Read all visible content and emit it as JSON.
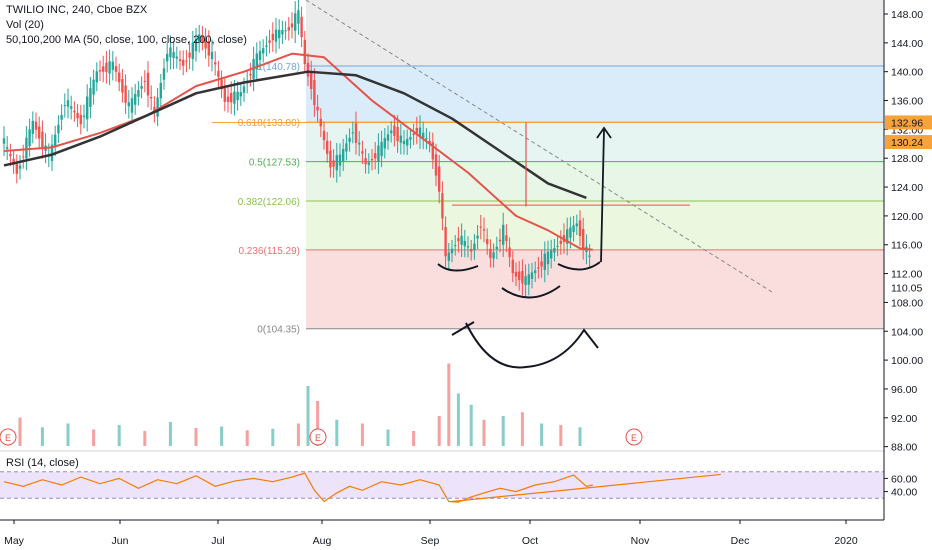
{
  "legend": {
    "title": "TWILIO INC, 240, Cboe BZX",
    "vol": "Vol (20)",
    "ma": "50,100,200 MA (50, close, 100, close, 200, close)",
    "rsi": "RSI (14, close)"
  },
  "colors": {
    "up": "#26a69a",
    "down": "#ef5350",
    "ma50": "#e5534b",
    "ma200": "#333333",
    "rsi_line": "#f57c00",
    "rsi_band": "#ede3fb",
    "price_tag": "#f7a23b"
  },
  "chart_data": [
    {
      "type": "candlestick",
      "title": "TWILIO INC, 240, Cboe BZX",
      "x_tick_labels": [
        "May",
        "Jun",
        "Jul",
        "Aug",
        "Sep",
        "Oct",
        "Nov",
        "Dec",
        "2020"
      ],
      "ylim": [
        88,
        150
      ],
      "y_ticks": [
        88,
        92,
        96,
        100,
        104,
        108,
        112,
        116,
        120,
        124,
        128,
        132,
        136,
        140,
        144,
        148
      ],
      "y_tick_labels": [
        "88.00",
        "92.00",
        "96.00",
        "100.00",
        "104.00",
        "108.00",
        "112.00",
        "116.00",
        "120.00",
        "124.00",
        "128.00",
        "132.00",
        "136.00",
        "140.00",
        "144.00",
        "148.00"
      ],
      "price_tags": [
        {
          "value": 132.96,
          "label": "132.96"
        },
        {
          "value": 130.24,
          "label": "130.24"
        },
        {
          "value": 110.05,
          "label": "110.05"
        }
      ],
      "fib_levels": [
        {
          "ratio": "1",
          "label": "1(140.78)",
          "value": 140.78,
          "color": "#6fa8dc",
          "fill": "#d6e9f8"
        },
        {
          "ratio": "0.618",
          "label": "0.618(133.00)",
          "value": 133.0,
          "color": "#f0a030",
          "fill": "#e3f4f0"
        },
        {
          "ratio": "0.5",
          "label": "0.5(127.53)",
          "value": 127.53,
          "color": "#4caf50",
          "fill": "#e6f5e6"
        },
        {
          "ratio": "0.382",
          "label": "0.382(122.06)",
          "value": 122.06,
          "color": "#8bc34a",
          "fill": "#eaf6dc"
        },
        {
          "ratio": "0.236",
          "label": "0.236(115.29)",
          "value": 115.29,
          "color": "#e57373",
          "fill": "#f9dada"
        },
        {
          "ratio": "0",
          "label": "0(104.35)",
          "value": 104.35,
          "color": "#888888",
          "fill": "#f9dada"
        }
      ],
      "price_path": [
        {
          "day": 0,
          "price": 131
        },
        {
          "day": 5,
          "price": 126
        },
        {
          "day": 10,
          "price": 133
        },
        {
          "day": 15,
          "price": 128
        },
        {
          "day": 20,
          "price": 136
        },
        {
          "day": 25,
          "price": 133
        },
        {
          "day": 30,
          "price": 140
        },
        {
          "day": 35,
          "price": 141
        },
        {
          "day": 40,
          "price": 135
        },
        {
          "day": 45,
          "price": 139
        },
        {
          "day": 48,
          "price": 134
        },
        {
          "day": 52,
          "price": 143
        },
        {
          "day": 57,
          "price": 141
        },
        {
          "day": 62,
          "price": 145
        },
        {
          "day": 66,
          "price": 142
        },
        {
          "day": 70,
          "price": 136
        },
        {
          "day": 75,
          "price": 137
        },
        {
          "day": 80,
          "price": 142
        },
        {
          "day": 85,
          "price": 145
        },
        {
          "day": 90,
          "price": 146
        },
        {
          "day": 93,
          "price": 148
        },
        {
          "day": 95,
          "price": 141
        },
        {
          "day": 97,
          "price": 138
        },
        {
          "day": 100,
          "price": 132
        },
        {
          "day": 103,
          "price": 127
        },
        {
          "day": 106,
          "price": 128
        },
        {
          "day": 110,
          "price": 132
        },
        {
          "day": 114,
          "price": 127
        },
        {
          "day": 118,
          "price": 129
        },
        {
          "day": 122,
          "price": 132
        },
        {
          "day": 126,
          "price": 130
        },
        {
          "day": 130,
          "price": 132
        },
        {
          "day": 134,
          "price": 130
        },
        {
          "day": 137,
          "price": 124
        },
        {
          "day": 139,
          "price": 114
        },
        {
          "day": 143,
          "price": 117
        },
        {
          "day": 147,
          "price": 115
        },
        {
          "day": 150,
          "price": 119
        },
        {
          "day": 153,
          "price": 114
        },
        {
          "day": 157,
          "price": 118
        },
        {
          "day": 160,
          "price": 112
        },
        {
          "day": 164,
          "price": 111
        },
        {
          "day": 168,
          "price": 113
        },
        {
          "day": 172,
          "price": 115
        },
        {
          "day": 176,
          "price": 117
        },
        {
          "day": 180,
          "price": 119
        },
        {
          "day": 182,
          "price": 116
        },
        {
          "day": 184,
          "price": 114
        }
      ],
      "ma50": [
        {
          "day": 0,
          "price": 129
        },
        {
          "day": 15,
          "price": 129.5
        },
        {
          "day": 30,
          "price": 131.5
        },
        {
          "day": 45,
          "price": 134
        },
        {
          "day": 60,
          "price": 138
        },
        {
          "day": 75,
          "price": 140
        },
        {
          "day": 90,
          "price": 142.5
        },
        {
          "day": 100,
          "price": 142
        },
        {
          "day": 115,
          "price": 136
        },
        {
          "day": 130,
          "price": 131
        },
        {
          "day": 145,
          "price": 126
        },
        {
          "day": 160,
          "price": 120
        },
        {
          "day": 170,
          "price": 118
        },
        {
          "day": 180,
          "price": 115.5
        },
        {
          "day": 184,
          "price": 115.3
        }
      ],
      "ma200": [
        {
          "day": 0,
          "price": 127
        },
        {
          "day": 15,
          "price": 128.5
        },
        {
          "day": 30,
          "price": 131
        },
        {
          "day": 45,
          "price": 134
        },
        {
          "day": 60,
          "price": 137
        },
        {
          "day": 75,
          "price": 138.5
        },
        {
          "day": 95,
          "price": 140
        },
        {
          "day": 110,
          "price": 139.5
        },
        {
          "day": 125,
          "price": 137
        },
        {
          "day": 140,
          "price": 133.5
        },
        {
          "day": 155,
          "price": 129
        },
        {
          "day": 170,
          "price": 124.5
        },
        {
          "day": 182,
          "price": 122.5
        }
      ],
      "volume": [
        {
          "day": 5,
          "value": 38,
          "up": false
        },
        {
          "day": 12,
          "value": 25,
          "up": true
        },
        {
          "day": 20,
          "value": 30,
          "up": true
        },
        {
          "day": 28,
          "value": 22,
          "up": false
        },
        {
          "day": 36,
          "value": 28,
          "up": true
        },
        {
          "day": 44,
          "value": 20,
          "up": false
        },
        {
          "day": 52,
          "value": 32,
          "up": true
        },
        {
          "day": 60,
          "value": 24,
          "up": false
        },
        {
          "day": 68,
          "value": 26,
          "up": true
        },
        {
          "day": 76,
          "value": 21,
          "up": false
        },
        {
          "day": 84,
          "value": 23,
          "up": true
        },
        {
          "day": 92,
          "value": 30,
          "up": false
        },
        {
          "day": 95,
          "value": 80,
          "up": true
        },
        {
          "day": 98,
          "value": 60,
          "up": false
        },
        {
          "day": 104,
          "value": 35,
          "up": true
        },
        {
          "day": 112,
          "value": 30,
          "up": false
        },
        {
          "day": 120,
          "value": 22,
          "up": true
        },
        {
          "day": 128,
          "value": 20,
          "up": false
        },
        {
          "day": 136,
          "value": 40,
          "up": false
        },
        {
          "day": 139,
          "value": 110,
          "up": false
        },
        {
          "day": 142,
          "value": 70,
          "up": true
        },
        {
          "day": 146,
          "value": 55,
          "up": true
        },
        {
          "day": 150,
          "value": 35,
          "up": false
        },
        {
          "day": 156,
          "value": 40,
          "up": true
        },
        {
          "day": 162,
          "value": 45,
          "up": false
        },
        {
          "day": 168,
          "value": 30,
          "up": true
        },
        {
          "day": 174,
          "value": 28,
          "up": false
        },
        {
          "day": 180,
          "value": 25,
          "up": true
        }
      ],
      "rsi": {
        "ylim": [
          0,
          100
        ],
        "ticks": [
          40,
          60
        ],
        "tick_labels": [
          "40.00",
          "60.00"
        ],
        "band": [
          30,
          70
        ],
        "values": [
          {
            "day": 0,
            "value": 55
          },
          {
            "day": 6,
            "value": 48
          },
          {
            "day": 12,
            "value": 58
          },
          {
            "day": 18,
            "value": 50
          },
          {
            "day": 24,
            "value": 62
          },
          {
            "day": 30,
            "value": 52
          },
          {
            "day": 36,
            "value": 60
          },
          {
            "day": 42,
            "value": 45
          },
          {
            "day": 48,
            "value": 58
          },
          {
            "day": 54,
            "value": 52
          },
          {
            "day": 60,
            "value": 64
          },
          {
            "day": 66,
            "value": 48
          },
          {
            "day": 72,
            "value": 56
          },
          {
            "day": 78,
            "value": 60
          },
          {
            "day": 84,
            "value": 55
          },
          {
            "day": 90,
            "value": 62
          },
          {
            "day": 94,
            "value": 68
          },
          {
            "day": 97,
            "value": 42
          },
          {
            "day": 100,
            "value": 25
          },
          {
            "day": 104,
            "value": 38
          },
          {
            "day": 108,
            "value": 48
          },
          {
            "day": 112,
            "value": 42
          },
          {
            "day": 118,
            "value": 55
          },
          {
            "day": 124,
            "value": 50
          },
          {
            "day": 130,
            "value": 58
          },
          {
            "day": 136,
            "value": 50
          },
          {
            "day": 139,
            "value": 25
          },
          {
            "day": 142,
            "value": 24
          },
          {
            "day": 146,
            "value": 32
          },
          {
            "day": 150,
            "value": 38
          },
          {
            "day": 155,
            "value": 45
          },
          {
            "day": 160,
            "value": 40
          },
          {
            "day": 166,
            "value": 50
          },
          {
            "day": 172,
            "value": 55
          },
          {
            "day": 178,
            "value": 65
          },
          {
            "day": 182,
            "value": 48
          },
          {
            "day": 184,
            "value": 50
          }
        ],
        "trendline": [
          {
            "day": 140,
            "value": 25
          },
          {
            "day": 224,
            "value": 66
          }
        ]
      }
    }
  ]
}
